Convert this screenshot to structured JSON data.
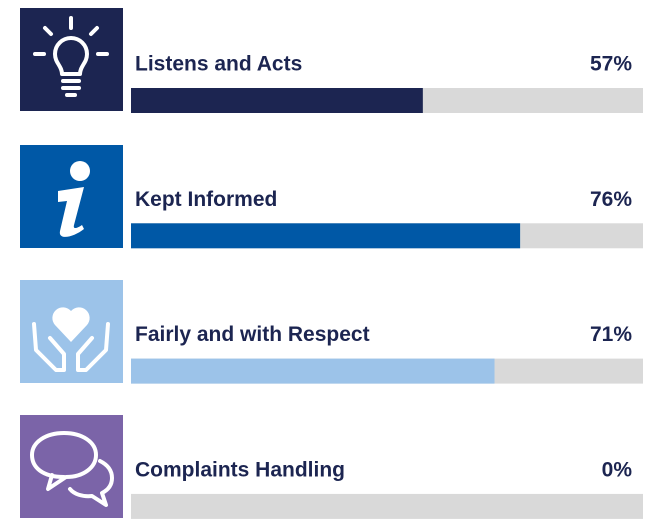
{
  "chart_data": {
    "type": "bar",
    "orientation": "horizontal",
    "categories": [
      "Listens and Acts",
      "Kept Informed",
      "Fairly and with Respect",
      "Complaints Handling"
    ],
    "values": [
      57,
      76,
      71,
      0
    ],
    "value_labels": [
      "57%",
      "76%",
      "71%",
      "0%"
    ],
    "colors": [
      "#1c2551",
      "#0058a6",
      "#9cc3e9",
      "#7b64a8"
    ],
    "xlim": [
      0,
      100
    ]
  }
}
